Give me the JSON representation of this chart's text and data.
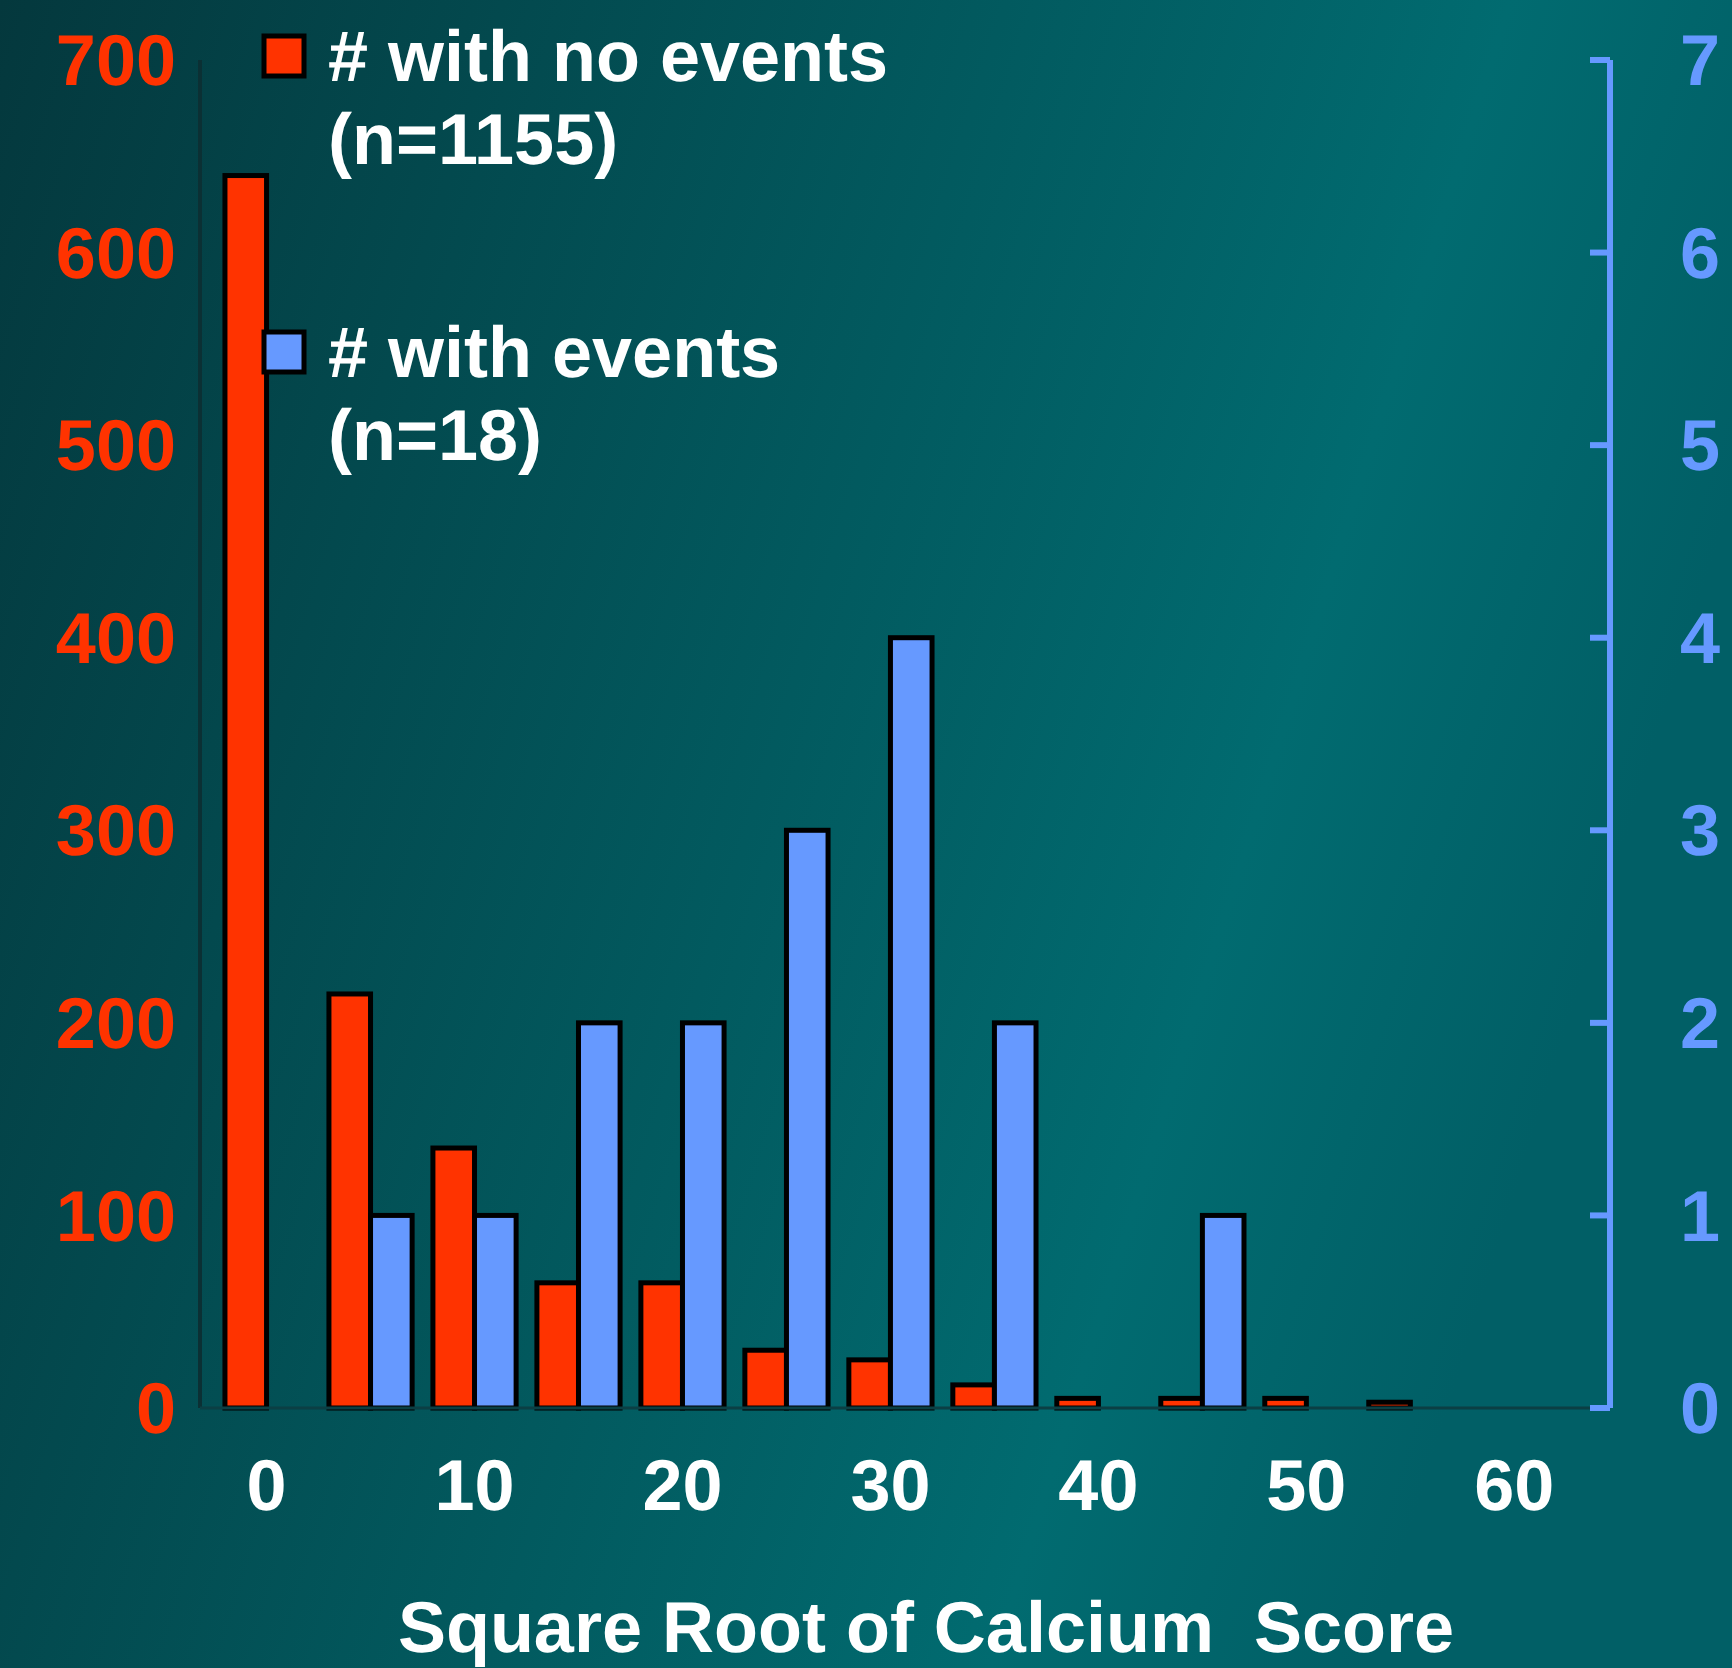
{
  "chart_data": {
    "type": "bar",
    "xlabel": "Square Root of Calcium  Score",
    "x": [
      0,
      5,
      10,
      15,
      20,
      25,
      30,
      35,
      40,
      45,
      50,
      55
    ],
    "xlim": [
      -3.2,
      64.6
    ],
    "xticks": [
      0,
      10,
      20,
      30,
      40,
      50,
      60
    ],
    "ylim": [
      0,
      700
    ],
    "yticks": [
      0,
      100,
      200,
      300,
      400,
      500,
      600,
      700
    ],
    "y2lim": [
      0,
      7
    ],
    "y2ticks": [
      0,
      1,
      2,
      3,
      4,
      5,
      6,
      7
    ],
    "series": [
      {
        "name": "# with no events (n=1155)",
        "color": "#ff3300",
        "values": [
          640,
          215,
          135,
          65,
          65,
          30,
          25,
          12,
          5,
          5,
          5,
          3
        ]
      },
      {
        "name": "# with events (n=18)",
        "color": "#6699ff",
        "axis": "y2",
        "values": [
          0,
          1,
          1,
          2,
          2,
          3,
          4,
          2,
          0,
          1,
          0,
          0
        ]
      }
    ],
    "legend": "top left",
    "grid": false
  }
}
